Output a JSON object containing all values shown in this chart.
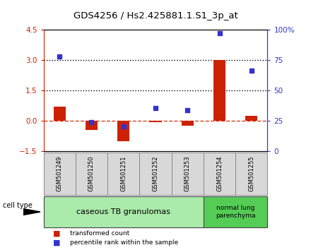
{
  "title": "GDS4256 / Hs2.425881.1.S1_3p_at",
  "samples": [
    "GSM501249",
    "GSM501250",
    "GSM501251",
    "GSM501252",
    "GSM501253",
    "GSM501254",
    "GSM501255"
  ],
  "red_bars": [
    0.72,
    -0.45,
    -1.02,
    -0.05,
    -0.22,
    3.02,
    0.26
  ],
  "blue_squares_left_axis": [
    3.2,
    -0.05,
    -0.28,
    0.65,
    0.55,
    4.35,
    2.5
  ],
  "ylim": [
    -1.5,
    4.5
  ],
  "yticks_left": [
    -1.5,
    0.0,
    1.5,
    3.0,
    4.5
  ],
  "right_tick_positions": [
    -1.5,
    0.0,
    1.5,
    3.0,
    4.5
  ],
  "right_tick_labels": [
    "0",
    "25",
    "50",
    "75",
    "100%"
  ],
  "dotted_lines": [
    1.5,
    3.0
  ],
  "bar_color": "#cc2200",
  "square_color": "#3333cc",
  "group1_label": "caseous TB granulomas",
  "group2_label": "normal lung\nparenchyma",
  "group1_count": 5,
  "group2_count": 2,
  "cell_type_label": "cell type",
  "legend_red": "transformed count",
  "legend_blue": "percentile rank within the sample",
  "sample_box_color": "#d8d8d8",
  "sample_box_edge": "#888888",
  "group1_color": "#aaeaaa",
  "group2_color": "#55cc55",
  "title_fontsize": 9.5
}
